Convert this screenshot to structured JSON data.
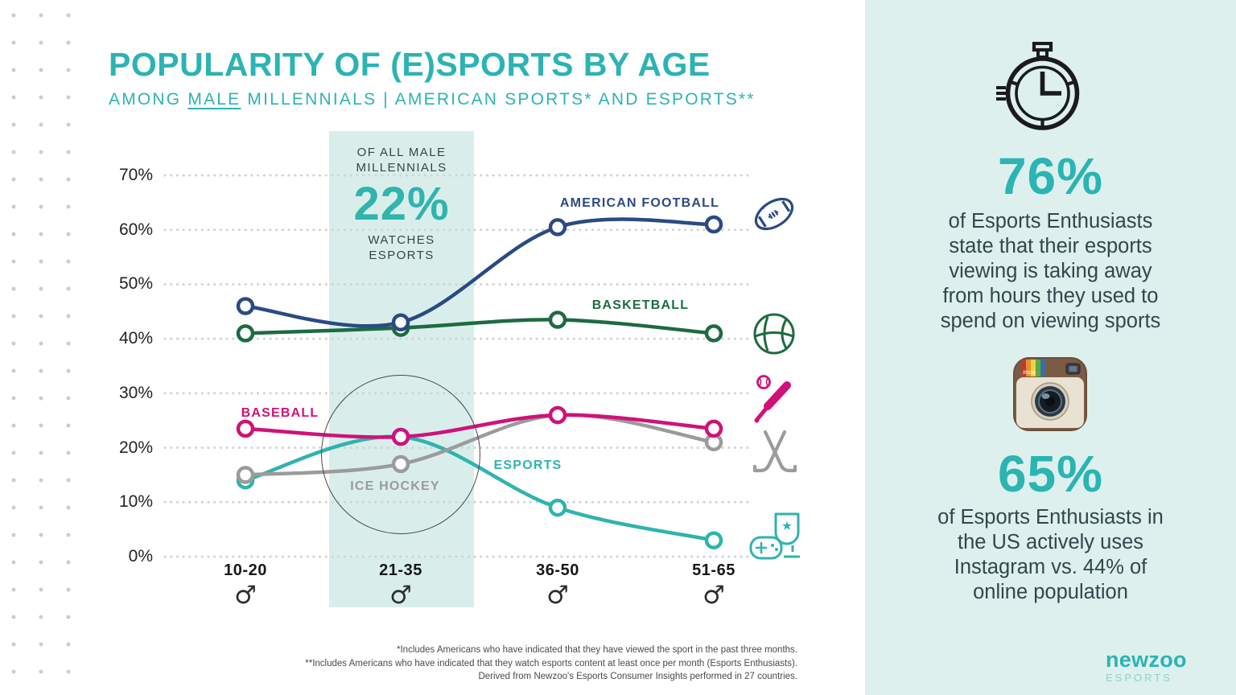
{
  "header": {
    "title": "POPULARITY OF (E)SPORTS BY AGE",
    "subtitle_prefix": "AMONG ",
    "subtitle_underline": "MALE",
    "subtitle_suffix": " MILLENNIALS | AMERICAN SPORTS* AND ESPORTS**"
  },
  "callout": {
    "top_label": "OF ALL MALE\nMILLENNIALS",
    "value": "22%",
    "bottom_label": "WATCHES\nESPORTS"
  },
  "chart_data": {
    "type": "line",
    "categories": [
      "10-20",
      "21-35",
      "36-50",
      "51-65"
    ],
    "male_symbol": "♂",
    "y_ticks": [
      "70%",
      "60%",
      "50%",
      "40%",
      "30%",
      "20%",
      "10%",
      "0%"
    ],
    "ylim": [
      0,
      70
    ],
    "grid": "dotted-horizontal",
    "legend_position": "inline-labels",
    "highlighted_category": "21-35",
    "series": [
      {
        "name": "AMERICAN FOOTBALL",
        "color": "#2a4a83",
        "values": [
          46,
          43,
          60.5,
          61
        ]
      },
      {
        "name": "BASKETBALL",
        "color": "#1d6b41",
        "values": [
          41,
          42,
          43.5,
          41
        ]
      },
      {
        "name": "BASEBALL",
        "color": "#d01179",
        "values": [
          23.5,
          22,
          26,
          23.5
        ]
      },
      {
        "name": "ICE HOCKEY",
        "color": "#9b9b9b",
        "values": [
          15,
          17,
          26,
          21
        ]
      },
      {
        "name": "ESPORTS",
        "color": "#2fb3ae",
        "values": [
          14,
          22,
          9,
          3
        ]
      }
    ]
  },
  "icons": {
    "chart_column": [
      "american-football-icon",
      "basketball-icon",
      "baseball-icon",
      "ice-hockey-icon",
      "esports-trophy-icon"
    ],
    "stat1_icon": "stopwatch-icon",
    "stat2_icon": "instagram-icon"
  },
  "footnotes": [
    "*Includes Americans who have indicated that they have viewed the sport in the past three months.",
    "**Includes Americans who have indicated that they watch esports content at least once per month (Esports Enthusiasts).",
    "Derived from Newzoo's Esports Consumer Insights performed in 27 countries."
  ],
  "side_panel": {
    "stat1": {
      "value": "76%",
      "text": "of Esports Enthusiasts\nstate that their esports\nviewing is taking away\nfrom hours they used to\nspend on viewing sports"
    },
    "stat2": {
      "value": "65%",
      "text": "of Esports Enthusiasts in\nthe US actively uses\nInstagram vs. 44% of\nonline population"
    },
    "logo": {
      "brand": "newzoo",
      "sub": "ESPORTS"
    }
  },
  "colors": {
    "accent_teal": "#2ab4b2",
    "panel_background": "#ddf0ee",
    "band_background": "#d9eeeb",
    "grid_dots": "#d2d2d2",
    "body_text": "#31474b"
  }
}
